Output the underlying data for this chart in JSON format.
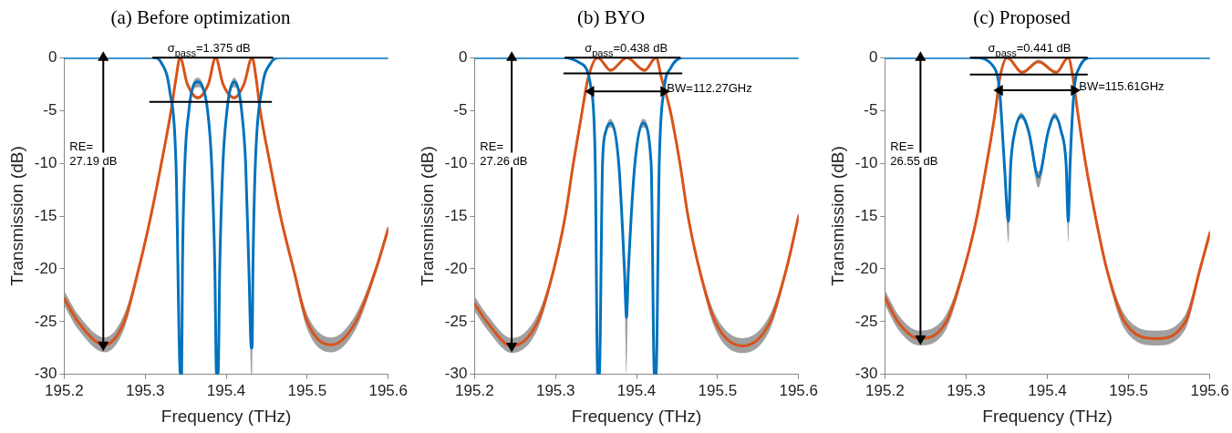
{
  "chart_data": [
    {
      "type": "line",
      "title": "(a) Before optimization",
      "xlabel": "Frequency (THz)",
      "ylabel": "Transmission (dB)",
      "xlim": [
        195.2,
        195.6
      ],
      "ylim": [
        -30,
        0
      ],
      "xticks": [
        195.2,
        195.3,
        195.4,
        195.5,
        195.6
      ],
      "yticks": [
        -30,
        -25,
        -20,
        -15,
        -10,
        -5,
        0
      ],
      "series": [
        {
          "color": "#d95319",
          "x": [
            195.2,
            195.217,
            195.25,
            195.274,
            195.292,
            195.307,
            195.32,
            195.332,
            195.338,
            195.343,
            195.352,
            195.365,
            195.378,
            195.387,
            195.396,
            195.41,
            195.422,
            195.432,
            195.437,
            195.442,
            195.454,
            195.467,
            195.483,
            195.5,
            195.53,
            195.56,
            195.585,
            195.6
          ],
          "values": [
            -22.8,
            -25,
            -27.2,
            -25,
            -20,
            -15,
            -10,
            -5,
            -2,
            0,
            -2.5,
            -3.8,
            -2.5,
            0,
            -2.5,
            -3.8,
            -2.5,
            0,
            -2,
            -5,
            -10,
            -15,
            -20,
            -25,
            -27.2,
            -25,
            -20,
            -16.2
          ],
          "lower": [
            -23.5,
            -25.7,
            -27.9,
            -25.7,
            -20.4,
            -15.4,
            -10.4,
            -5.4,
            -2.15,
            -0.15,
            -2.65,
            -3.95,
            -2.65,
            -0.15,
            -2.65,
            -3.95,
            -2.65,
            -0.15,
            -2.15,
            -5.4,
            -10.4,
            -15.4,
            -20.4,
            -25.7,
            -27.9,
            -25.7,
            -20.4,
            -16.6
          ],
          "upper": [
            -22.1,
            -24.3,
            -26.5,
            -24.3,
            -19.6,
            -14.6,
            -9.6,
            -4.6,
            -1.85,
            0,
            -2.35,
            -3.65,
            -2.35,
            0,
            -2.35,
            -3.65,
            -2.35,
            0,
            -1.85,
            -4.6,
            -9.6,
            -14.6,
            -19.6,
            -24.3,
            -26.5,
            -24.3,
            -19.6,
            -15.8
          ]
        },
        {
          "color": "#0072bd",
          "x": [
            195.2,
            195.31,
            195.32,
            195.33,
            195.338,
            195.3435,
            195.345,
            195.346,
            195.349,
            195.354,
            195.358,
            195.365,
            195.372,
            195.377,
            195.382,
            195.386,
            195.388,
            195.39,
            195.392,
            195.396,
            195.401,
            195.405,
            195.41,
            195.415,
            195.419,
            195.424,
            195.428,
            195.431,
            195.432,
            195.433,
            195.436,
            195.444,
            195.455,
            195.465,
            195.6
          ],
          "values": [
            0,
            0,
            -0.5,
            -3,
            -10,
            -30,
            -30,
            -20,
            -10,
            -5,
            -3,
            -2.3,
            -3,
            -5,
            -10,
            -20,
            -30,
            -30,
            -20,
            -10,
            -5,
            -3,
            -2.3,
            -3,
            -5,
            -10,
            -20,
            -27.5,
            -27.5,
            -20,
            -10,
            -3,
            -0.5,
            0,
            0
          ],
          "lower": [
            0,
            0,
            -0.5,
            -3,
            -10,
            -30,
            -30,
            -20,
            -10,
            -5.2,
            -3.3,
            -2.8,
            -3.3,
            -5.2,
            -10,
            -20,
            -30,
            -30,
            -20,
            -10,
            -5.2,
            -3.3,
            -2.8,
            -3.3,
            -5.2,
            -10,
            -20,
            -30,
            -30,
            -20,
            -10,
            -3,
            -0.5,
            0,
            0
          ],
          "upper": [
            0,
            0,
            -0.5,
            -3,
            -10,
            -30,
            -30,
            -20,
            -10,
            -4.8,
            -2.7,
            -1.9,
            -2.7,
            -4.8,
            -10,
            -20,
            -30,
            -30,
            -20,
            -10,
            -4.8,
            -2.7,
            -1.9,
            -2.7,
            -4.8,
            -10,
            -20,
            -27.5,
            -27.5,
            -20,
            -10,
            -3,
            -0.5,
            0,
            0
          ]
        },
        {
          "color": "#000000",
          "x": [
            195.3096,
            195.4572
          ],
          "values": [
            0,
            0
          ]
        },
        {
          "color": "#000000",
          "x": [
            195.306,
            195.4555
          ],
          "values": [
            -4.2,
            -4.2
          ]
        },
        {
          "color": "#000000",
          "x": [
            195.2483,
            195.2483
          ],
          "values": [
            0,
            -27.2
          ],
          "marker": "triangle"
        }
      ],
      "annotations": [
        {
          "text": "σ$_{pass}$=1.375 dB",
          "x": 195.3276,
          "y": 0
        },
        "RE=\n27.19 dB"
      ]
    },
    {
      "type": "line",
      "title": "(b) BYO",
      "xlabel": "Frequency (THz)",
      "ylabel": "Transmission (dB)",
      "xlim": [
        195.2,
        195.6
      ],
      "ylim": [
        -30,
        0
      ],
      "xticks": [
        195.2,
        195.3,
        195.4,
        195.5,
        195.6
      ],
      "yticks": [
        -30,
        -25,
        -20,
        -15,
        -10,
        -5,
        0
      ],
      "series": [
        {
          "color": "#d95319",
          "x": [
            195.2,
            195.215,
            195.246,
            195.278,
            195.298,
            195.312,
            195.322,
            195.333,
            195.34,
            195.352,
            195.368,
            195.388,
            195.41,
            195.424,
            195.431,
            195.4415,
            195.4535,
            195.4635,
            195.4774,
            195.497,
            195.531,
            195.565,
            195.585,
            195.6
          ],
          "values": [
            -23.3,
            -25,
            -27.3,
            -25,
            -20,
            -15,
            -10,
            -5,
            -2,
            0,
            -1.2,
            0,
            -1.2,
            0,
            -2,
            -5,
            -10,
            -15,
            -20,
            -25,
            -27.3,
            -25,
            -20,
            -15
          ],
          "lower": [
            -24,
            -25.7,
            -27.96,
            -25.7,
            -20.4,
            -15.4,
            -10.4,
            -5.4,
            -2.15,
            -0.15,
            -1.35,
            -0.15,
            -1.35,
            -0.15,
            -2.15,
            -5.4,
            -10.4,
            -15.4,
            -20.4,
            -25.7,
            -27.96,
            -25.7,
            -20.4,
            -15.4
          ],
          "upper": [
            -22.6,
            -24.3,
            -26.56,
            -24.3,
            -19.6,
            -14.6,
            -9.6,
            -4.6,
            -1.85,
            0,
            -1.05,
            0,
            -1.05,
            0,
            -1.85,
            -4.6,
            -9.6,
            -14.6,
            -19.6,
            -24.3,
            -26.56,
            -24.3,
            -19.6,
            -14.6
          ]
        },
        {
          "color": "#0072bd",
          "x": [
            195.2,
            195.31,
            195.33,
            195.344,
            195.349,
            195.352,
            195.354,
            195.358,
            195.362,
            195.368,
            195.378,
            195.385,
            195.3876,
            195.39,
            195.398,
            195.408,
            195.418,
            195.422,
            195.424,
            195.428,
            195.434,
            195.442,
            195.457,
            195.6
          ],
          "values": [
            0,
            0,
            -0.5,
            -3,
            -10,
            -30,
            -30,
            -10,
            -7,
            -6.2,
            -10,
            -20,
            -24.6,
            -20,
            -10,
            -6.2,
            -10,
            -30,
            -30,
            -10,
            -3,
            -1,
            0,
            0
          ],
          "lower": [
            0,
            0,
            -0.5,
            -3,
            -10.3,
            -30,
            -30,
            -10.3,
            -7.3,
            -6.6,
            -10.3,
            -20.5,
            -30,
            -20.5,
            -10.3,
            -6.6,
            -10.3,
            -30,
            -30,
            -10.3,
            -3,
            -1,
            0,
            0
          ],
          "upper": [
            0,
            0,
            -0.5,
            -3,
            -9.7,
            -30,
            -30,
            -9.7,
            -6.7,
            -5.8,
            -9.7,
            -19.5,
            -24.6,
            -19.5,
            -9.7,
            -5.8,
            -9.7,
            -30,
            -30,
            -9.7,
            -3,
            -1,
            0,
            0
          ]
        },
        {
          "color": "#000000",
          "x": [
            195.312,
            195.4535
          ],
          "values": [
            0,
            0
          ]
        },
        {
          "color": "#000000",
          "x": [
            195.3106,
            195.4555
          ],
          "values": [
            -1.5,
            -1.5
          ]
        },
        {
          "color": "#000000",
          "x": [
            195.3437,
            195.4335
          ],
          "values": [
            -3.2,
            -3.2
          ],
          "marker": "triangle"
        },
        {
          "color": "#000000",
          "x": [
            195.2459,
            195.2459
          ],
          "values": [
            0,
            -27.3
          ],
          "marker": "triangle"
        }
      ],
      "annotations": [
        {
          "text": "σ$_{pass}$=0.438 dB",
          "x": 195.336,
          "y": 0
        },
        "RE=\n27.26 dB",
        {
          "text": "BW=112.27GHz",
          "x": 195.4375,
          "y": -3.8
        }
      ]
    },
    {
      "type": "line",
      "title": "(c) Proposed",
      "xlabel": "Frequency (THz)",
      "ylabel": "Transmission (dB)",
      "xlim": [
        195.2,
        195.6
      ],
      "ylim": [
        -30,
        0
      ],
      "xticks": [
        195.2,
        195.3,
        195.4,
        195.5,
        195.6
      ],
      "yticks": [
        -30,
        -25,
        -20,
        -15,
        -10,
        -5,
        0
      ],
      "series": [
        {
          "color": "#d95319",
          "x": [
            195.2,
            195.216,
            195.242,
            195.2756,
            195.2975,
            195.3135,
            195.3254,
            195.3361,
            195.3413,
            195.3505,
            195.369,
            195.389,
            195.411,
            195.4257,
            195.4317,
            195.437,
            195.447,
            195.459,
            195.473,
            195.495,
            195.534,
            195.57,
            195.588,
            195.6
          ],
          "values": [
            -22.7,
            -25,
            -26.6,
            -25,
            -20,
            -15,
            -10,
            -5,
            -2,
            0,
            -1.4,
            -0.4,
            -1.4,
            0,
            -2,
            -5,
            -10,
            -15,
            -20,
            -25,
            -26.6,
            -25,
            -20,
            -16.6
          ],
          "lower": [
            -23.4,
            -25.7,
            -27.25,
            -25.7,
            -20.4,
            -15.4,
            -10.4,
            -5.4,
            -2.15,
            -0.15,
            -1.55,
            -0.5,
            -1.55,
            -0.15,
            -2.15,
            -5.4,
            -10.4,
            -15.4,
            -20.4,
            -25.7,
            -27.25,
            -25.7,
            -20.4,
            -17
          ],
          "upper": [
            -22,
            -24.3,
            -25.85,
            -24.3,
            -19.6,
            -14.6,
            -9.6,
            -4.6,
            -1.85,
            0,
            -1.25,
            -0.2,
            -1.25,
            0,
            -1.85,
            -4.6,
            -9.6,
            -14.6,
            -19.6,
            -24.3,
            -25.85,
            -24.3,
            -19.6,
            -16.2
          ]
        },
        {
          "color": "#0072bd",
          "x": [
            195.2,
            195.31,
            195.335,
            195.341,
            195.347,
            195.352,
            195.355,
            195.36,
            195.368,
            195.377,
            195.389,
            195.401,
            195.409,
            195.417,
            195.423,
            195.4257,
            195.428,
            195.433,
            195.439,
            195.455,
            195.6
          ],
          "values": [
            0,
            0,
            -1,
            -3,
            -10,
            -15.5,
            -10,
            -7,
            -5.5,
            -7,
            -11.3,
            -7,
            -5.5,
            -7,
            -10,
            -15.5,
            -10,
            -3,
            -1,
            0,
            0
          ],
          "lower": [
            0,
            0,
            -1.1,
            -3.2,
            -10.5,
            -17.5,
            -10.5,
            -7.3,
            -5.8,
            -7.3,
            -12.3,
            -7.3,
            -5.8,
            -7.3,
            -10.5,
            -17.5,
            -10.5,
            -3.2,
            -1.1,
            0,
            0
          ],
          "upper": [
            0,
            0,
            -0.9,
            -2.8,
            -9.5,
            -15.3,
            -9.5,
            -6.7,
            -5.2,
            -6.7,
            -10.8,
            -6.7,
            -5.2,
            -6.7,
            -9.5,
            -15.3,
            -9.5,
            -2.8,
            -0.9,
            0,
            0
          ]
        },
        {
          "color": "#000000",
          "x": [
            195.3055,
            195.4488
          ],
          "values": [
            0,
            0
          ]
        },
        {
          "color": "#000000",
          "x": [
            195.3055,
            195.4488
          ],
          "values": [
            -1.6,
            -1.6
          ]
        },
        {
          "color": "#000000",
          "x": [
            195.3413,
            195.4329
          ],
          "values": [
            -3.1,
            -3.1
          ],
          "marker": "triangle"
        },
        {
          "color": "#000000",
          "x": [
            195.2438,
            195.2438
          ],
          "values": [
            0,
            -26.6
          ],
          "marker": "triangle"
        }
      ],
      "annotations": [
        {
          "text": "σ$_{pass}$=0.441 dB",
          "x": 195.327,
          "y": 0
        },
        "RE=\n26.55 dB",
        {
          "text": "BW=115.61GHz",
          "x": 195.4389,
          "y": -3.6
        }
      ]
    }
  ]
}
